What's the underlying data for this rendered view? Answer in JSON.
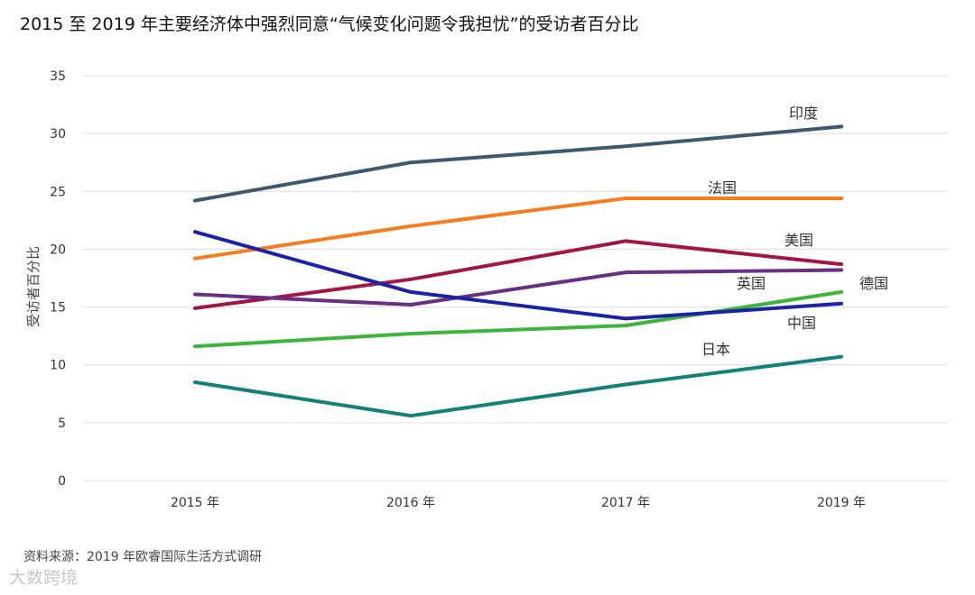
{
  "chart_data": {
    "type": "line",
    "title": "2015 至 2019 年主要经济体中强烈同意“气候变化问题令我担忧”的受访者百分比",
    "xlabel": "",
    "ylabel": "受访者百分比",
    "categories": [
      "2015 年",
      "2016 年",
      "2017 年",
      "2019 年"
    ],
    "ylim": [
      0,
      35
    ],
    "yticks": [
      0,
      5,
      10,
      15,
      20,
      25,
      30,
      35
    ],
    "grid": true,
    "series": [
      {
        "name": "印度",
        "color": "#3b5a6e",
        "values": [
          24.2,
          27.5,
          28.9,
          30.6
        ]
      },
      {
        "name": "法国",
        "color": "#f57c1f",
        "values": [
          19.2,
          22.0,
          24.4,
          24.4
        ]
      },
      {
        "name": "美国",
        "color": "#a31545",
        "values": [
          14.9,
          17.4,
          20.7,
          18.7
        ]
      },
      {
        "name": "英国",
        "color": "#6a2f85",
        "values": [
          16.1,
          15.2,
          18.0,
          18.2
        ]
      },
      {
        "name": "德国",
        "color": "#3db53a",
        "values": [
          11.6,
          12.7,
          13.4,
          16.3
        ]
      },
      {
        "name": "中国",
        "color": "#1c22a8",
        "values": [
          21.5,
          16.3,
          14.0,
          15.3
        ]
      },
      {
        "name": "日本",
        "color": "#138079",
        "values": [
          8.5,
          5.6,
          8.3,
          10.7
        ]
      }
    ]
  },
  "source": "资料来源：2019 年欧睿国际生活方式调研",
  "watermark": "大数跨境"
}
